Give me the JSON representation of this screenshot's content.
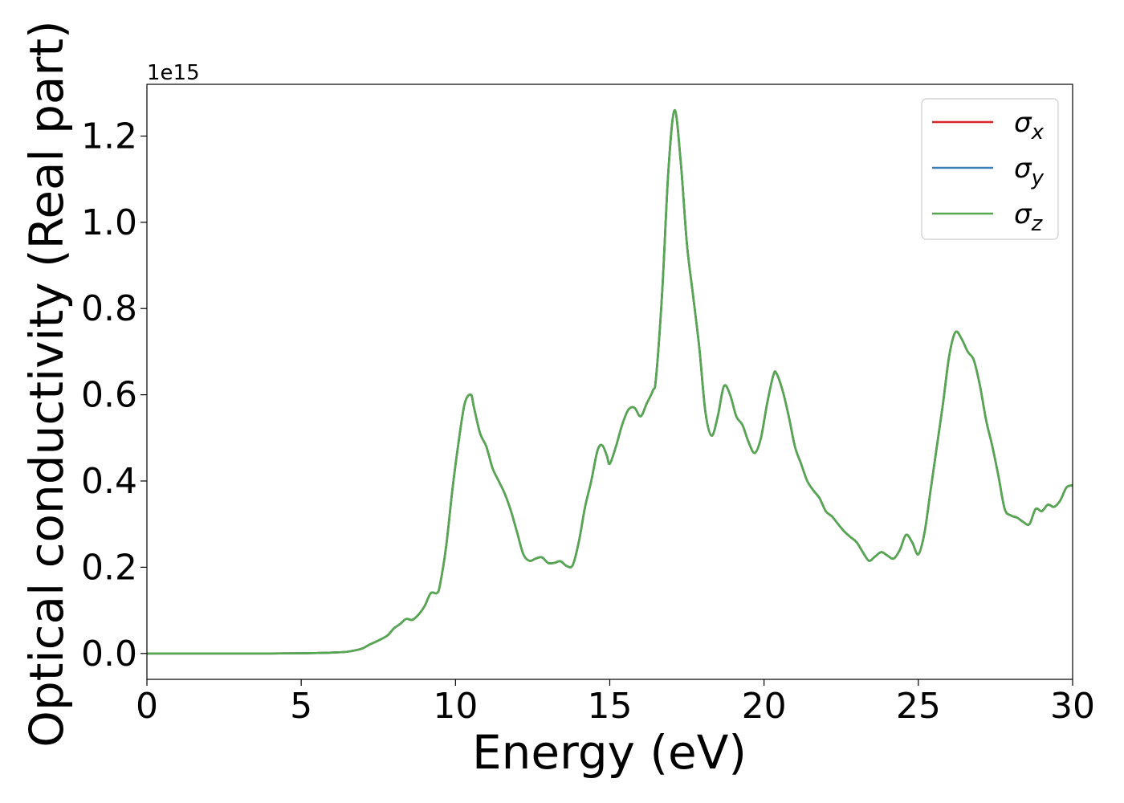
{
  "chart_data": {
    "type": "line",
    "xlabel": "Energy (eV)",
    "ylabel": "Optical conductivity (Real part)",
    "y_offset_label": "1e15",
    "y_scale": 1000000000000000.0,
    "xlim": [
      0,
      30
    ],
    "ylim": [
      -0.06,
      1.32
    ],
    "x_ticks": [
      0,
      5,
      10,
      15,
      20,
      25,
      30
    ],
    "x_tick_labels": [
      "0",
      "5",
      "10",
      "15",
      "20",
      "25",
      "30"
    ],
    "y_ticks": [
      0.0,
      0.2,
      0.4,
      0.6,
      0.8,
      1.0,
      1.2
    ],
    "y_tick_labels": [
      "0.0",
      "0.2",
      "0.4",
      "0.6",
      "0.8",
      "1.0",
      "1.2"
    ],
    "grid": false,
    "legend_position": "top-right",
    "legend": [
      {
        "base": "σ",
        "sub": "x",
        "color": "#d62728"
      },
      {
        "base": "σ",
        "sub": "y",
        "color": "#3a7fb5"
      },
      {
        "base": "σ",
        "sub": "z",
        "color": "#55a84f"
      }
    ],
    "series_x": [
      0,
      2,
      4,
      5,
      5.5,
      6,
      6.5,
      6.8,
      7,
      7.2,
      7.5,
      7.8,
      8.0,
      8.2,
      8.4,
      8.6,
      8.8,
      9.0,
      9.2,
      9.4,
      9.5,
      9.7,
      9.9,
      10.1,
      10.3,
      10.5,
      10.6,
      10.8,
      11.0,
      11.2,
      11.4,
      11.6,
      11.8,
      12.0,
      12.2,
      12.4,
      12.6,
      12.8,
      13.0,
      13.2,
      13.4,
      13.6,
      13.8,
      14.0,
      14.2,
      14.4,
      14.6,
      14.75,
      14.9,
      15.0,
      15.2,
      15.4,
      15.6,
      15.8,
      16.0,
      16.2,
      16.4,
      16.5,
      16.7,
      16.9,
      17.1,
      17.3,
      17.5,
      17.7,
      17.9,
      18.1,
      18.3,
      18.5,
      18.7,
      18.9,
      19.1,
      19.3,
      19.5,
      19.7,
      19.9,
      20.1,
      20.3,
      20.4,
      20.6,
      20.8,
      21.0,
      21.2,
      21.4,
      21.6,
      21.8,
      22.0,
      22.2,
      22.4,
      22.6,
      22.8,
      23.0,
      23.2,
      23.4,
      23.6,
      23.8,
      24.0,
      24.2,
      24.4,
      24.6,
      24.8,
      25.0,
      25.2,
      25.4,
      25.6,
      25.8,
      26.0,
      26.2,
      26.4,
      26.6,
      26.8,
      27.0,
      27.2,
      27.4,
      27.6,
      27.8,
      28.0,
      28.2,
      28.4,
      28.6,
      28.8,
      29.0,
      29.2,
      29.4,
      29.6,
      29.8,
      30.0
    ],
    "series": [
      {
        "name": "σx",
        "color": "#d62728",
        "values": [
          0,
          0,
          0,
          0.0005,
          0.001,
          0.002,
          0.004,
          0.008,
          0.012,
          0.02,
          0.03,
          0.042,
          0.058,
          0.068,
          0.08,
          0.078,
          0.09,
          0.11,
          0.14,
          0.14,
          0.16,
          0.25,
          0.38,
          0.49,
          0.58,
          0.6,
          0.57,
          0.51,
          0.48,
          0.43,
          0.4,
          0.37,
          0.33,
          0.28,
          0.23,
          0.215,
          0.22,
          0.223,
          0.21,
          0.21,
          0.214,
          0.203,
          0.205,
          0.26,
          0.34,
          0.4,
          0.47,
          0.483,
          0.46,
          0.44,
          0.48,
          0.53,
          0.565,
          0.57,
          0.55,
          0.58,
          0.61,
          0.64,
          0.84,
          1.12,
          1.26,
          1.14,
          0.95,
          0.83,
          0.71,
          0.56,
          0.505,
          0.55,
          0.62,
          0.6,
          0.55,
          0.53,
          0.49,
          0.465,
          0.5,
          0.58,
          0.645,
          0.65,
          0.61,
          0.55,
          0.48,
          0.44,
          0.4,
          0.378,
          0.36,
          0.33,
          0.318,
          0.3,
          0.283,
          0.27,
          0.258,
          0.235,
          0.215,
          0.225,
          0.235,
          0.227,
          0.22,
          0.24,
          0.275,
          0.258,
          0.23,
          0.28,
          0.38,
          0.48,
          0.58,
          0.69,
          0.745,
          0.73,
          0.7,
          0.68,
          0.62,
          0.54,
          0.48,
          0.41,
          0.335,
          0.32,
          0.315,
          0.305,
          0.3,
          0.335,
          0.33,
          0.345,
          0.34,
          0.355,
          0.385,
          0.39
        ]
      },
      {
        "name": "σy",
        "color": "#3a7fb5",
        "values": [
          0,
          0,
          0,
          0.0005,
          0.001,
          0.002,
          0.004,
          0.008,
          0.012,
          0.02,
          0.03,
          0.042,
          0.058,
          0.068,
          0.08,
          0.078,
          0.09,
          0.11,
          0.14,
          0.14,
          0.16,
          0.25,
          0.38,
          0.49,
          0.58,
          0.6,
          0.57,
          0.51,
          0.48,
          0.43,
          0.4,
          0.37,
          0.33,
          0.28,
          0.23,
          0.215,
          0.22,
          0.223,
          0.21,
          0.21,
          0.214,
          0.203,
          0.205,
          0.26,
          0.34,
          0.4,
          0.47,
          0.483,
          0.46,
          0.44,
          0.48,
          0.53,
          0.565,
          0.57,
          0.55,
          0.58,
          0.61,
          0.64,
          0.84,
          1.12,
          1.26,
          1.14,
          0.95,
          0.83,
          0.71,
          0.56,
          0.505,
          0.55,
          0.62,
          0.6,
          0.55,
          0.53,
          0.49,
          0.465,
          0.5,
          0.58,
          0.645,
          0.65,
          0.61,
          0.55,
          0.48,
          0.44,
          0.4,
          0.378,
          0.36,
          0.33,
          0.318,
          0.3,
          0.283,
          0.27,
          0.258,
          0.235,
          0.215,
          0.225,
          0.235,
          0.227,
          0.22,
          0.24,
          0.275,
          0.258,
          0.23,
          0.28,
          0.38,
          0.48,
          0.58,
          0.69,
          0.745,
          0.73,
          0.7,
          0.68,
          0.62,
          0.54,
          0.48,
          0.41,
          0.335,
          0.32,
          0.315,
          0.305,
          0.3,
          0.335,
          0.33,
          0.345,
          0.34,
          0.355,
          0.385,
          0.39
        ]
      },
      {
        "name": "σz",
        "color": "#55a84f",
        "values": [
          0,
          0,
          0,
          0.0005,
          0.001,
          0.002,
          0.004,
          0.008,
          0.012,
          0.02,
          0.03,
          0.042,
          0.058,
          0.068,
          0.08,
          0.078,
          0.09,
          0.11,
          0.14,
          0.14,
          0.16,
          0.25,
          0.38,
          0.49,
          0.58,
          0.6,
          0.57,
          0.51,
          0.48,
          0.43,
          0.4,
          0.37,
          0.33,
          0.28,
          0.23,
          0.215,
          0.22,
          0.223,
          0.21,
          0.21,
          0.214,
          0.203,
          0.205,
          0.26,
          0.34,
          0.4,
          0.47,
          0.483,
          0.46,
          0.44,
          0.48,
          0.53,
          0.565,
          0.57,
          0.55,
          0.58,
          0.61,
          0.64,
          0.84,
          1.12,
          1.26,
          1.14,
          0.95,
          0.83,
          0.71,
          0.56,
          0.505,
          0.55,
          0.62,
          0.6,
          0.55,
          0.53,
          0.49,
          0.465,
          0.5,
          0.58,
          0.645,
          0.65,
          0.61,
          0.55,
          0.48,
          0.44,
          0.4,
          0.378,
          0.36,
          0.33,
          0.318,
          0.3,
          0.283,
          0.27,
          0.258,
          0.235,
          0.215,
          0.225,
          0.235,
          0.227,
          0.22,
          0.24,
          0.275,
          0.258,
          0.23,
          0.28,
          0.38,
          0.48,
          0.58,
          0.69,
          0.745,
          0.73,
          0.7,
          0.68,
          0.62,
          0.54,
          0.48,
          0.41,
          0.335,
          0.32,
          0.315,
          0.305,
          0.3,
          0.335,
          0.33,
          0.345,
          0.34,
          0.355,
          0.385,
          0.39
        ]
      }
    ]
  }
}
